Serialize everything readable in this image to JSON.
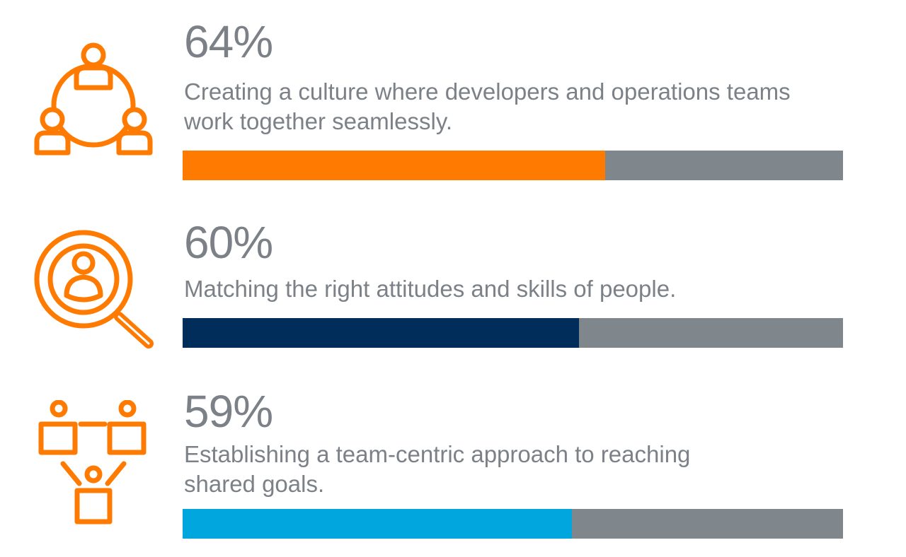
{
  "chart_data": {
    "type": "bar",
    "orientation": "horizontal",
    "series": [
      {
        "value": 64,
        "value_label": "64%",
        "description": "Creating a culture where developers and operations teams work together seamlessly.",
        "color": "#ff7a00",
        "icon": "team-circle-icon"
      },
      {
        "value": 60,
        "value_label": "60%",
        "description": "Matching the right attitudes and skills of people.",
        "color": "#002d5a",
        "icon": "magnifier-person-icon"
      },
      {
        "value": 59,
        "value_label": "59%",
        "description": "Establishing a team-centric approach to reaching shared goals.",
        "color": "#00a6dd",
        "icon": "team-connection-icon"
      }
    ],
    "xlim": [
      0,
      100
    ],
    "track_color": "#80878c",
    "icon_color": "#ff7a00",
    "grid": false,
    "legend": "none"
  }
}
